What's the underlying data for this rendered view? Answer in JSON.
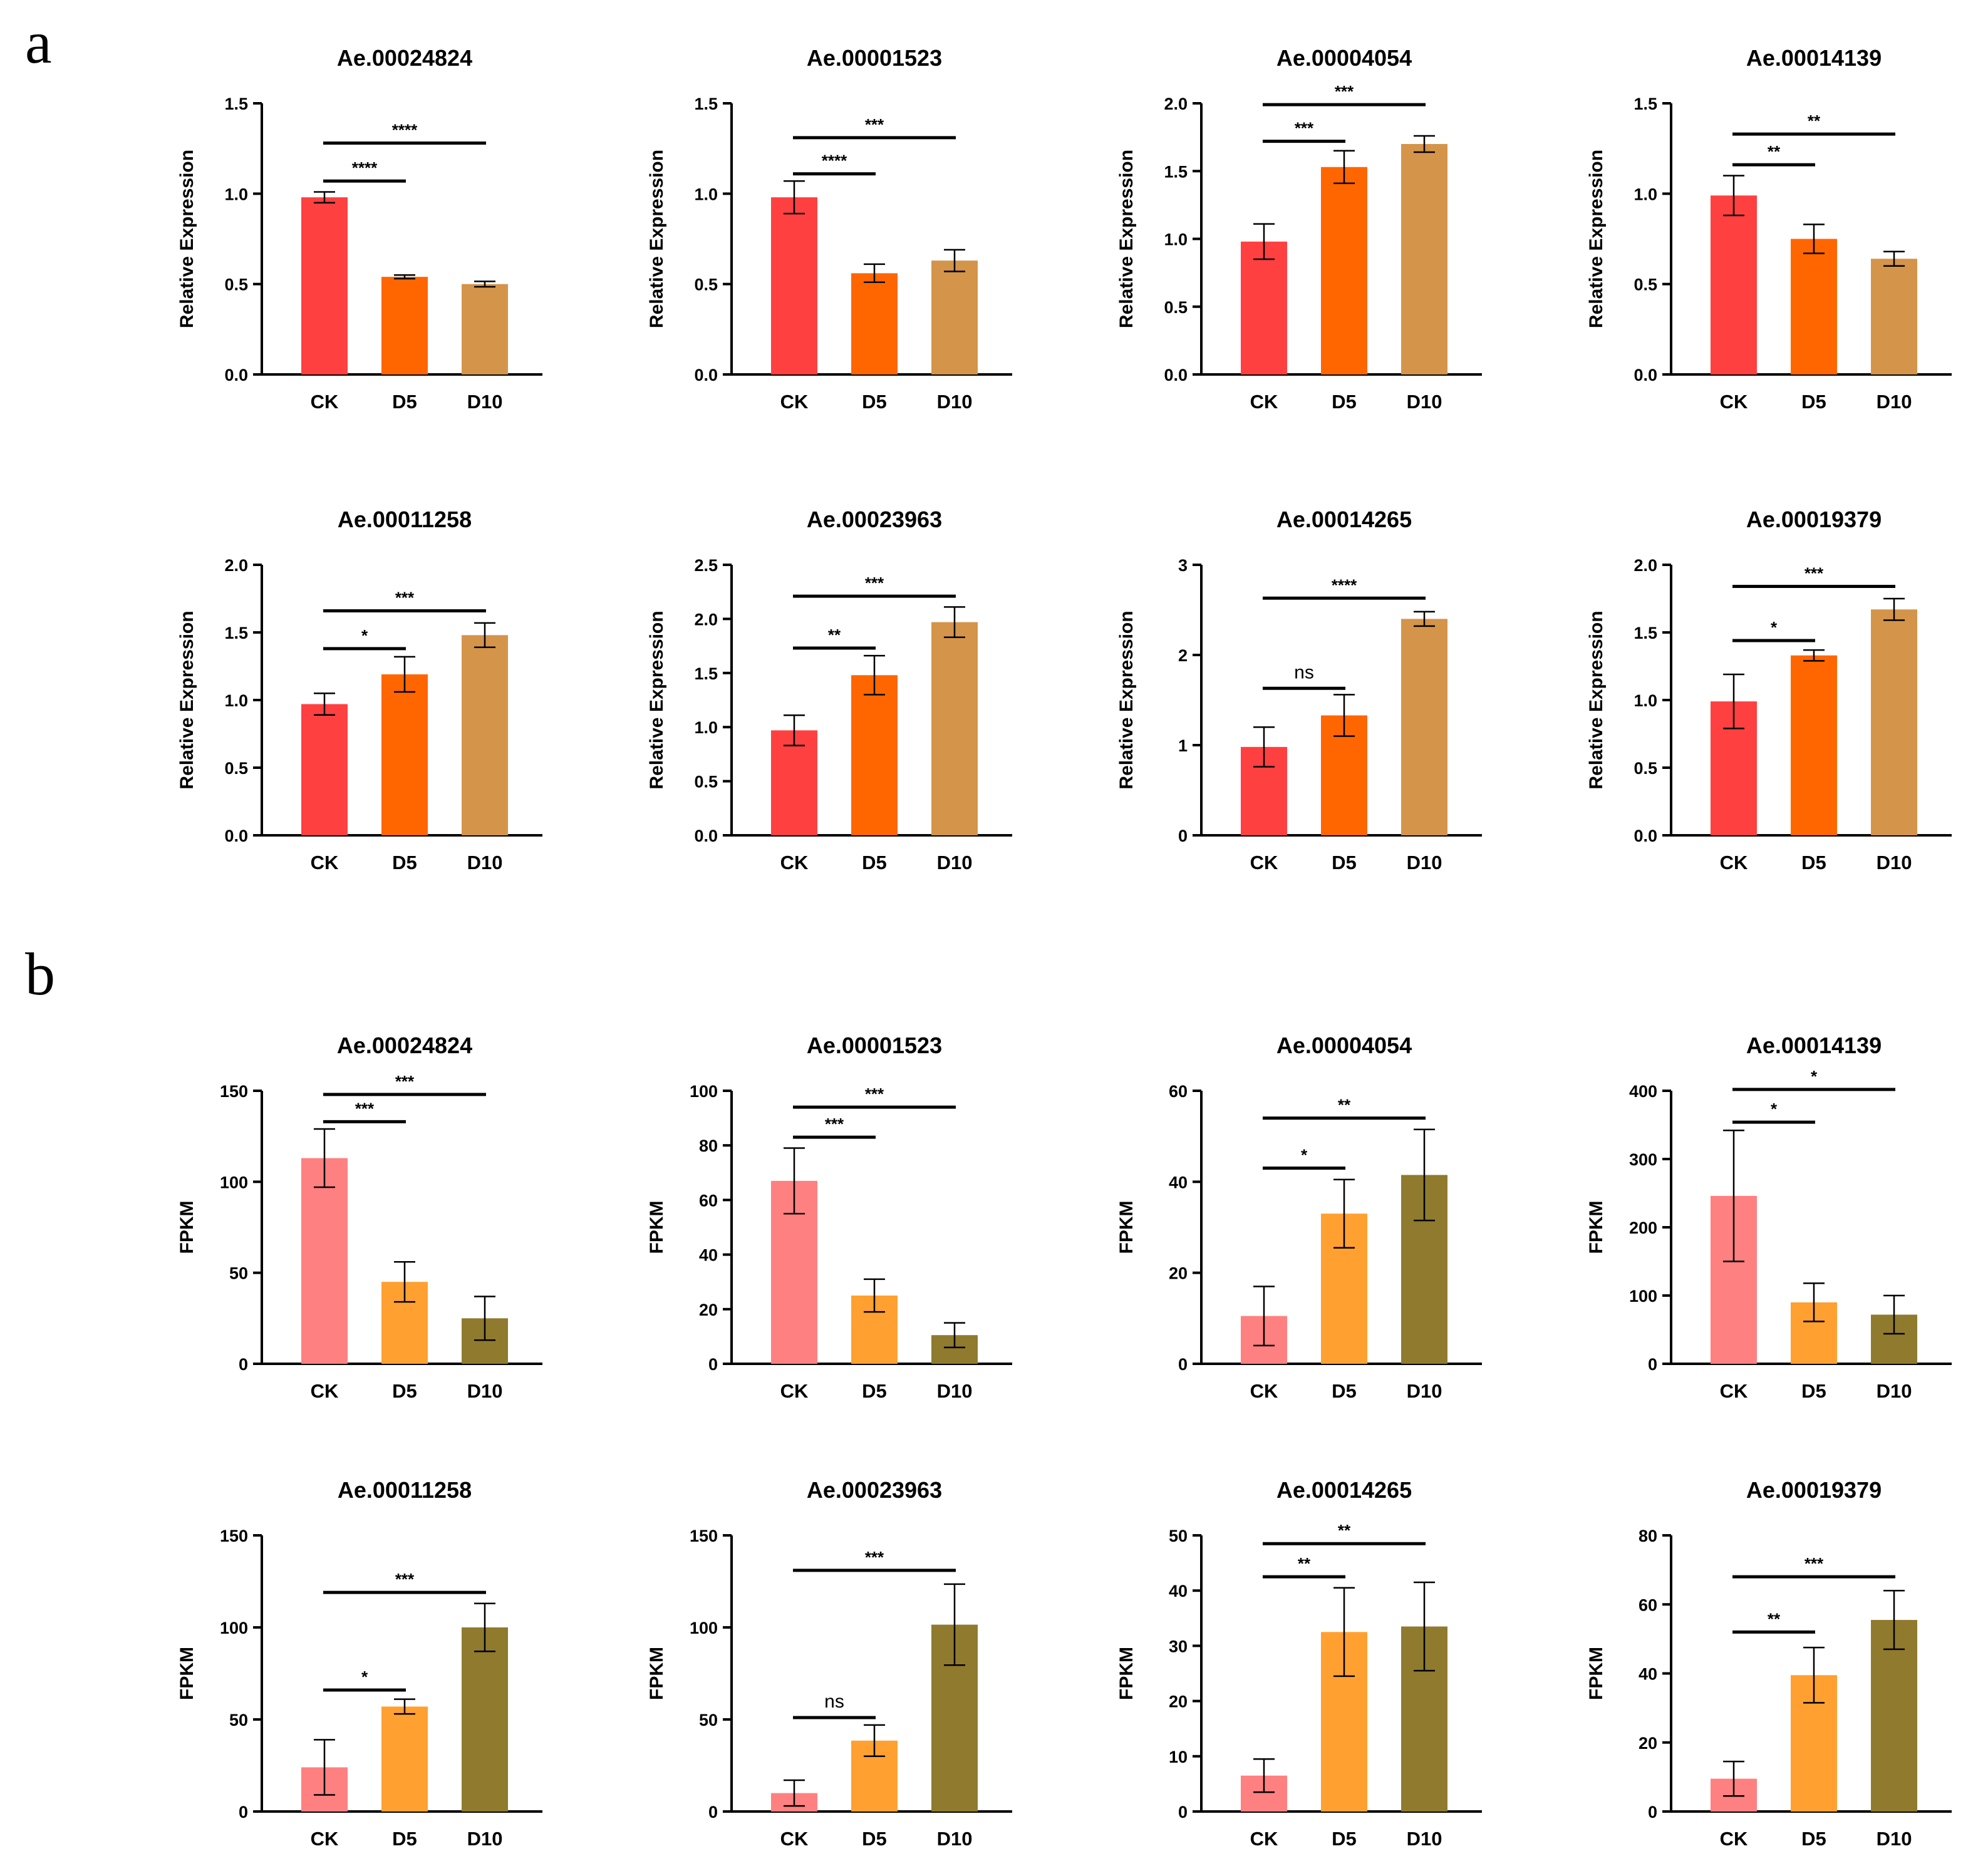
{
  "panels": [
    {
      "letter": "a"
    },
    {
      "letter": "b"
    }
  ],
  "colors": {
    "qpcr": [
      "#FF4040",
      "#FF6600",
      "#D4944A"
    ],
    "fpkm": [
      "#FF8080",
      "#FFA031",
      "#8F7A2E"
    ],
    "axis": "#000000"
  },
  "chart_data": [
    {
      "type": "bar",
      "panel": "a",
      "title": "Ae.00024824",
      "ylabel": "Relative Expression",
      "categories": [
        "CK",
        "D5",
        "D10"
      ],
      "values": [
        0.98,
        0.54,
        0.5
      ],
      "errors": [
        0.03,
        0.01,
        0.015
      ],
      "ylim": [
        0,
        1.5
      ],
      "yticks": [
        "0.0",
        "0.5",
        "1.0",
        "1.5"
      ],
      "significance": [
        {
          "from": 0,
          "to": 1,
          "label": "****",
          "y": 1.07
        },
        {
          "from": 0,
          "to": 2,
          "label": "****",
          "y": 1.28
        }
      ]
    },
    {
      "type": "bar",
      "panel": "a",
      "title": "Ae.00001523",
      "ylabel": "Relative Expression",
      "categories": [
        "CK",
        "D5",
        "D10"
      ],
      "values": [
        0.98,
        0.56,
        0.63
      ],
      "errors": [
        0.09,
        0.05,
        0.06
      ],
      "ylim": [
        0,
        1.5
      ],
      "yticks": [
        "0.0",
        "0.5",
        "1.0",
        "1.5"
      ],
      "significance": [
        {
          "from": 0,
          "to": 1,
          "label": "****",
          "y": 1.11
        },
        {
          "from": 0,
          "to": 2,
          "label": "***",
          "y": 1.31
        }
      ]
    },
    {
      "type": "bar",
      "panel": "a",
      "title": "Ae.00004054",
      "ylabel": "Relative Expression",
      "categories": [
        "CK",
        "D5",
        "D10"
      ],
      "values": [
        0.98,
        1.53,
        1.7
      ],
      "errors": [
        0.13,
        0.12,
        0.06
      ],
      "ylim": [
        0,
        2.0
      ],
      "yticks": [
        "0.0",
        "0.5",
        "1.0",
        "1.5",
        "2.0"
      ],
      "significance": [
        {
          "from": 0,
          "to": 1,
          "label": "***",
          "y": 1.72
        },
        {
          "from": 0,
          "to": 2,
          "label": "***",
          "y": 1.99
        }
      ]
    },
    {
      "type": "bar",
      "panel": "a",
      "title": "Ae.00014139",
      "ylabel": "Relative Expression",
      "categories": [
        "CK",
        "D5",
        "D10"
      ],
      "values": [
        0.99,
        0.75,
        0.64
      ],
      "errors": [
        0.11,
        0.08,
        0.04
      ],
      "ylim": [
        0,
        1.5
      ],
      "yticks": [
        "0.0",
        "0.5",
        "1.0",
        "1.5"
      ],
      "significance": [
        {
          "from": 0,
          "to": 1,
          "label": "**",
          "y": 1.16
        },
        {
          "from": 0,
          "to": 2,
          "label": "**",
          "y": 1.33
        }
      ]
    },
    {
      "type": "bar",
      "panel": "a",
      "title": "Ae.00011258",
      "ylabel": "Relative Expression",
      "categories": [
        "CK",
        "D5",
        "D10"
      ],
      "values": [
        0.97,
        1.19,
        1.48
      ],
      "errors": [
        0.08,
        0.13,
        0.09
      ],
      "ylim": [
        0,
        2.0
      ],
      "yticks": [
        "0.0",
        "0.5",
        "1.0",
        "1.5",
        "2.0"
      ],
      "significance": [
        {
          "from": 0,
          "to": 1,
          "label": "*",
          "y": 1.38
        },
        {
          "from": 0,
          "to": 2,
          "label": "***",
          "y": 1.66
        }
      ]
    },
    {
      "type": "bar",
      "panel": "a",
      "title": "Ae.00023963",
      "ylabel": "Relative Expression",
      "categories": [
        "CK",
        "D5",
        "D10"
      ],
      "values": [
        0.97,
        1.48,
        1.97
      ],
      "errors": [
        0.14,
        0.18,
        0.14
      ],
      "ylim": [
        0,
        2.5
      ],
      "yticks": [
        "0.0",
        "0.5",
        "1.0",
        "1.5",
        "2.0",
        "2.5"
      ],
      "significance": [
        {
          "from": 0,
          "to": 1,
          "label": "**",
          "y": 1.73
        },
        {
          "from": 0,
          "to": 2,
          "label": "***",
          "y": 2.21
        }
      ]
    },
    {
      "type": "bar",
      "panel": "a",
      "title": "Ae.00014265",
      "ylabel": "Relative Expression",
      "categories": [
        "CK",
        "D5",
        "D10"
      ],
      "values": [
        0.98,
        1.33,
        2.4
      ],
      "errors": [
        0.22,
        0.23,
        0.08
      ],
      "ylim": [
        0,
        3
      ],
      "yticks": [
        "0",
        "1",
        "2",
        "3"
      ],
      "significance": [
        {
          "from": 0,
          "to": 1,
          "label": "ns",
          "y": 1.63
        },
        {
          "from": 0,
          "to": 2,
          "label": "****",
          "y": 2.63
        }
      ]
    },
    {
      "type": "bar",
      "panel": "a",
      "title": "Ae.00019379",
      "ylabel": "Relative Expression",
      "categories": [
        "CK",
        "D5",
        "D10"
      ],
      "values": [
        0.99,
        1.33,
        1.67
      ],
      "errors": [
        0.2,
        0.04,
        0.08
      ],
      "ylim": [
        0,
        2.0
      ],
      "yticks": [
        "0.0",
        "0.5",
        "1.0",
        "1.5",
        "2.0"
      ],
      "significance": [
        {
          "from": 0,
          "to": 1,
          "label": "*",
          "y": 1.44
        },
        {
          "from": 0,
          "to": 2,
          "label": "***",
          "y": 1.84
        }
      ]
    },
    {
      "type": "bar",
      "panel": "b",
      "title": "Ae.00024824",
      "ylabel": "FPKM",
      "categories": [
        "CK",
        "D5",
        "D10"
      ],
      "values": [
        113,
        45,
        25
      ],
      "errors": [
        16,
        11,
        12
      ],
      "ylim": [
        0,
        150
      ],
      "yticks": [
        "0",
        "50",
        "100",
        "150"
      ],
      "significance": [
        {
          "from": 0,
          "to": 1,
          "label": "***",
          "y": 133
        },
        {
          "from": 0,
          "to": 2,
          "label": "***",
          "y": 148
        }
      ]
    },
    {
      "type": "bar",
      "panel": "b",
      "title": "Ae.00001523",
      "ylabel": "FPKM",
      "categories": [
        "CK",
        "D5",
        "D10"
      ],
      "values": [
        67,
        25,
        10.5
      ],
      "errors": [
        12,
        6,
        4.5
      ],
      "ylim": [
        0,
        100
      ],
      "yticks": [
        "0",
        "20",
        "40",
        "60",
        "80",
        "100"
      ],
      "significance": [
        {
          "from": 0,
          "to": 1,
          "label": "***",
          "y": 83
        },
        {
          "from": 0,
          "to": 2,
          "label": "***",
          "y": 94
        }
      ]
    },
    {
      "type": "bar",
      "panel": "b",
      "title": "Ae.00004054",
      "ylabel": "FPKM",
      "categories": [
        "CK",
        "D5",
        "D10"
      ],
      "values": [
        10.5,
        33,
        41.5
      ],
      "errors": [
        6.5,
        7.5,
        10
      ],
      "ylim": [
        0,
        60
      ],
      "yticks": [
        "0",
        "20",
        "40",
        "60"
      ],
      "significance": [
        {
          "from": 0,
          "to": 1,
          "label": "*",
          "y": 43
        },
        {
          "from": 0,
          "to": 2,
          "label": "**",
          "y": 54
        }
      ]
    },
    {
      "type": "bar",
      "panel": "b",
      "title": "Ae.00014139",
      "ylabel": "FPKM",
      "categories": [
        "CK",
        "D5",
        "D10"
      ],
      "values": [
        246,
        90,
        72
      ],
      "errors": [
        96,
        28,
        28
      ],
      "ylim": [
        0,
        400
      ],
      "yticks": [
        "0",
        "100",
        "200",
        "300",
        "400"
      ],
      "significance": [
        {
          "from": 0,
          "to": 1,
          "label": "*",
          "y": 354
        },
        {
          "from": 0,
          "to": 2,
          "label": "*",
          "y": 402
        }
      ]
    },
    {
      "type": "bar",
      "panel": "b",
      "title": "Ae.00011258",
      "ylabel": "FPKM",
      "categories": [
        "CK",
        "D5",
        "D10"
      ],
      "values": [
        24,
        57,
        100
      ],
      "errors": [
        15,
        4,
        13
      ],
      "ylim": [
        0,
        150
      ],
      "yticks": [
        "0",
        "50",
        "100",
        "150"
      ],
      "significance": [
        {
          "from": 0,
          "to": 1,
          "label": "*",
          "y": 66
        },
        {
          "from": 0,
          "to": 2,
          "label": "***",
          "y": 119
        }
      ]
    },
    {
      "type": "bar",
      "panel": "b",
      "title": "Ae.00023963",
      "ylabel": "FPKM",
      "categories": [
        "CK",
        "D5",
        "D10"
      ],
      "values": [
        10,
        38.5,
        101.5
      ],
      "errors": [
        7,
        8.5,
        22
      ],
      "ylim": [
        0,
        150
      ],
      "yticks": [
        "0",
        "50",
        "100",
        "150"
      ],
      "significance": [
        {
          "from": 0,
          "to": 1,
          "label": "ns",
          "y": 51
        },
        {
          "from": 0,
          "to": 2,
          "label": "***",
          "y": 131
        }
      ]
    },
    {
      "type": "bar",
      "panel": "b",
      "title": "Ae.00014265",
      "ylabel": "FPKM",
      "categories": [
        "CK",
        "D5",
        "D10"
      ],
      "values": [
        6.5,
        32.5,
        33.5
      ],
      "errors": [
        3,
        8,
        8
      ],
      "ylim": [
        0,
        50
      ],
      "yticks": [
        "0",
        "10",
        "20",
        "30",
        "40",
        "50"
      ],
      "significance": [
        {
          "from": 0,
          "to": 1,
          "label": "**",
          "y": 42.5
        },
        {
          "from": 0,
          "to": 2,
          "label": "**",
          "y": 48.5
        }
      ]
    },
    {
      "type": "bar",
      "panel": "b",
      "title": "Ae.00019379",
      "ylabel": "FPKM",
      "categories": [
        "CK",
        "D5",
        "D10"
      ],
      "values": [
        9.5,
        39.5,
        55.5
      ],
      "errors": [
        5,
        8,
        8.5
      ],
      "ylim": [
        0,
        80
      ],
      "yticks": [
        "0",
        "20",
        "40",
        "60",
        "80"
      ],
      "significance": [
        {
          "from": 0,
          "to": 1,
          "label": "**",
          "y": 52
        },
        {
          "from": 0,
          "to": 2,
          "label": "***",
          "y": 68
        }
      ]
    }
  ]
}
